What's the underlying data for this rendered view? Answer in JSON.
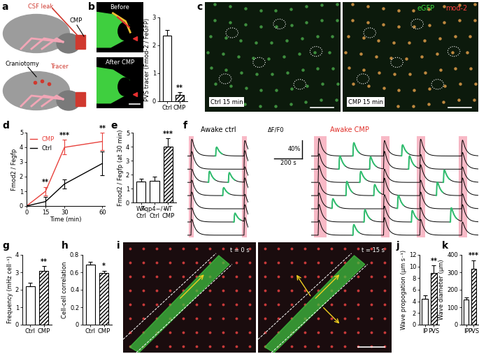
{
  "chart_data": [
    {
      "type": "bar",
      "categories": [
        "Ctrl",
        "CMP"
      ],
      "values": [
        2.35,
        0.22
      ],
      "errors": [
        0.2,
        0.1
      ],
      "colors": [
        "#ffffff",
        "#ffffff"
      ],
      "ylabel": "PVS tracer (Fmod-2 / FeGFP)",
      "ylim": [
        0,
        3
      ],
      "yticks": [
        0,
        1,
        2,
        3
      ],
      "annotations": [
        {
          "text": "**",
          "category": "CMP"
        }
      ]
    },
    {
      "type": "line",
      "panel": "d",
      "x": [
        0,
        15,
        30,
        60
      ],
      "series": [
        {
          "name": "CMP",
          "color": "#e8413c",
          "values": [
            0,
            1.0,
            4.0,
            4.4
          ],
          "errors": [
            0,
            0.3,
            0.5,
            0.6
          ]
        },
        {
          "name": "Ctrl",
          "color": "#000000",
          "values": [
            0,
            0.3,
            1.5,
            2.9
          ],
          "errors": [
            0,
            0.3,
            0.3,
            0.8
          ]
        }
      ],
      "xlabel": "Time (min)",
      "ylabel": "Fmod2 / Fegfp",
      "xlim": [
        0,
        62
      ],
      "xticks": [
        0,
        15,
        30,
        60
      ],
      "ylim": [
        0,
        5
      ],
      "yticks": [
        0,
        1,
        2,
        3,
        4,
        5
      ],
      "legend": "upper left",
      "annotations": [
        {
          "text": "**",
          "x": 15
        },
        {
          "text": "***",
          "x": 30
        },
        {
          "text": "**",
          "x": 60
        }
      ]
    },
    {
      "type": "bar",
      "panel": "e",
      "categories": [
        "WT\nCtrl",
        "Aqp4−/−\nCtrl",
        "WT\nCMP"
      ],
      "values": [
        1.5,
        1.55,
        4.0
      ],
      "errors": [
        0.2,
        0.3,
        0.6
      ],
      "colors": [
        "#ffffff",
        "#ffffff",
        "#ffffff"
      ],
      "ylabel": "Fmod2 / Fegfp (at 30 min)",
      "ylim": [
        0,
        5
      ],
      "yticks": [
        0,
        1,
        2,
        3,
        4,
        5
      ],
      "annotations": [
        {
          "text": "***",
          "category": "WT\nCMP"
        }
      ]
    },
    {
      "type": "bar",
      "panel": "g",
      "categories": [
        "Ctrl",
        "CMP"
      ],
      "values": [
        2.2,
        3.1
      ],
      "errors": [
        0.2,
        0.25
      ],
      "colors": [
        "#ffffff",
        "#ffffff"
      ],
      "ylabel": "Frequency (mHz cell⁻¹)",
      "ylim": [
        0,
        4
      ],
      "yticks": [
        0,
        1,
        2,
        3,
        4
      ],
      "annotations": [
        {
          "text": "**",
          "category": "CMP"
        }
      ]
    },
    {
      "type": "bar",
      "panel": "h",
      "categories": [
        "Ctrl",
        "CMP"
      ],
      "values": [
        0.69,
        0.59
      ],
      "errors": [
        0.03,
        0.03
      ],
      "colors": [
        "#ffffff",
        "#ffffff"
      ],
      "ylabel": "Cell-cell correlation",
      "ylim": [
        0,
        0.8
      ],
      "yticks": [
        0,
        0.2,
        0.4,
        0.6,
        0.8
      ],
      "annotations": [
        {
          "text": "*",
          "category": "CMP"
        }
      ]
    },
    {
      "type": "bar",
      "panel": "j",
      "categories": [
        "IP",
        "PVS"
      ],
      "values": [
        4.5,
        8.9
      ],
      "errors": [
        0.6,
        1.3
      ],
      "colors": [
        "#ffffff",
        "#ffffff"
      ],
      "ylabel": "Wave propogation (μm s⁻¹)",
      "ylim": [
        0,
        12
      ],
      "yticks": [
        0,
        2,
        4,
        6,
        8,
        10,
        12
      ],
      "annotations": [
        {
          "text": "**",
          "category": "PVS"
        }
      ]
    },
    {
      "type": "bar",
      "panel": "k",
      "categories": [
        "IP",
        "PVS"
      ],
      "values": [
        145,
        320
      ],
      "errors": [
        10,
        50
      ],
      "colors": [
        "#ffffff",
        "#ffffff"
      ],
      "ylabel": "Wave diameter (μm)",
      "ylim": [
        0,
        400
      ],
      "yticks": [
        0,
        100,
        200,
        300,
        400
      ],
      "annotations": [
        {
          "text": "***",
          "category": "PVS"
        }
      ]
    }
  ],
  "diagram_a": {
    "panel": "a",
    "leak": "CSF leak",
    "cmp": "CMP",
    "craniotomy": "Craniotomy",
    "tracer": "Tracer"
  },
  "images_b": {
    "panel": "b",
    "before": "Before",
    "after": "After CMP"
  },
  "images_c": {
    "panel": "c",
    "channel_green": "eGFP",
    "channel_red": "mod-2",
    "left": "Ctrl 15 min",
    "right": "CMP 15 min"
  },
  "traces_f": {
    "panel": "f",
    "scale_label": "ΔF/F0",
    "dff": 40,
    "dff_label": "40%",
    "time": 200,
    "time_label": "200 s",
    "ctrl": {
      "title": "Awake ctrl",
      "xlim": [
        0,
        430
      ],
      "windows": [
        [
          10,
          45
        ],
        [
          385,
          420
        ]
      ],
      "peaks": [
        [
          [
            25,
            38
          ],
          [
            400,
            35
          ],
          [
            200,
            20
          ]
        ],
        [
          [
            25,
            40
          ],
          [
            400,
            42
          ]
        ],
        [
          [
            25,
            30
          ],
          [
            150,
            25
          ],
          [
            290,
            22
          ],
          [
            400,
            35
          ]
        ],
        [
          [
            25,
            35
          ],
          [
            250,
            18
          ],
          [
            400,
            40
          ]
        ],
        [
          [
            25,
            38
          ],
          [
            400,
            33
          ]
        ],
        [
          [
            25,
            32
          ],
          [
            330,
            20
          ],
          [
            400,
            38
          ]
        ],
        [
          [
            25,
            36
          ],
          [
            400,
            40
          ]
        ]
      ]
    },
    "cmp": {
      "title": "Awake CMP",
      "xlim": [
        0,
        1200
      ],
      "windows": [
        [
          20,
          110
        ],
        [
          500,
          560
        ],
        [
          760,
          820
        ],
        [
          1060,
          1120
        ]
      ],
      "peaks": [
        [
          [
            50,
            40
          ],
          [
            300,
            30
          ],
          [
            520,
            35
          ],
          [
            650,
            25
          ],
          [
            780,
            38
          ],
          [
            1080,
            36
          ]
        ],
        [
          [
            50,
            35
          ],
          [
            200,
            30
          ],
          [
            420,
            28
          ],
          [
            520,
            40
          ],
          [
            700,
            30
          ],
          [
            780,
            32
          ],
          [
            1080,
            38
          ]
        ],
        [
          [
            50,
            38
          ],
          [
            350,
            25
          ],
          [
            520,
            30
          ],
          [
            780,
            40
          ],
          [
            950,
            28
          ],
          [
            1080,
            35
          ]
        ],
        [
          [
            50,
            30
          ],
          [
            250,
            32
          ],
          [
            450,
            25
          ],
          [
            520,
            38
          ],
          [
            780,
            35
          ],
          [
            900,
            30
          ],
          [
            1080,
            40
          ]
        ],
        [
          [
            50,
            36
          ],
          [
            150,
            22
          ],
          [
            520,
            32
          ],
          [
            620,
            30
          ],
          [
            780,
            38
          ],
          [
            1080,
            34
          ]
        ],
        [
          [
            50,
            40
          ],
          [
            380,
            28
          ],
          [
            520,
            36
          ],
          [
            720,
            26
          ],
          [
            780,
            30
          ],
          [
            1000,
            32
          ],
          [
            1080,
            38
          ]
        ],
        [
          [
            50,
            34
          ],
          [
            300,
            24
          ],
          [
            520,
            40
          ],
          [
            780,
            36
          ],
          [
            1080,
            30
          ]
        ]
      ]
    }
  },
  "images_i": {
    "panel": "i",
    "left": "t = 0 s",
    "right": "t = 15 s"
  }
}
